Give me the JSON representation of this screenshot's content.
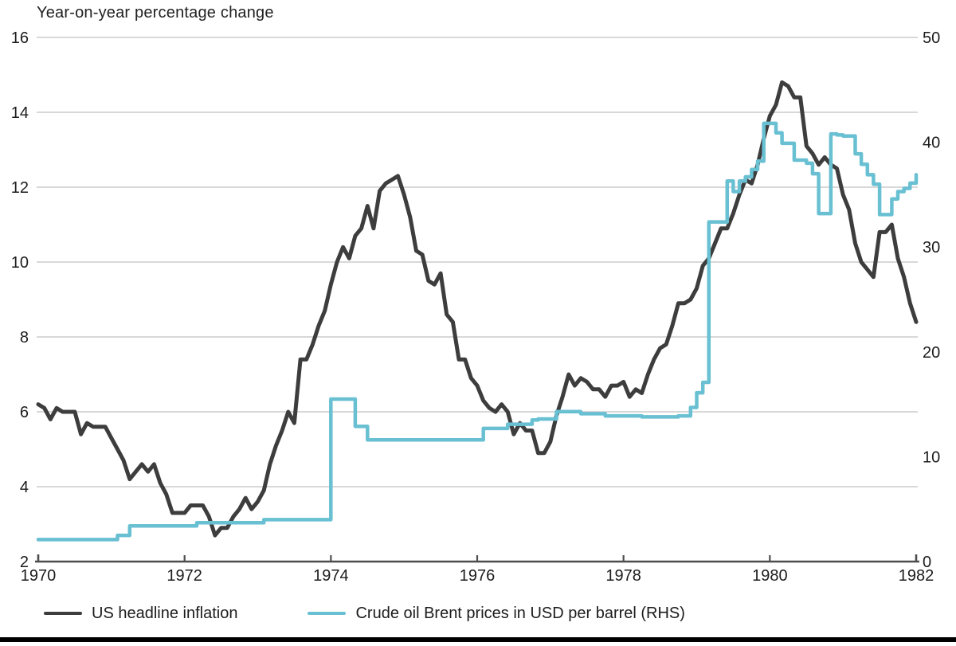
{
  "title": "Year-on-year percentage change",
  "legend": {
    "items": [
      {
        "label": "US headline inflation",
        "color": "#3d3d3d"
      },
      {
        "label": "Crude oil Brent prices in USD per barrel (RHS)",
        "color": "#68c0d2"
      }
    ]
  },
  "colors": {
    "inflation_line": "#3d3d3d",
    "oil_line": "#68c0d2",
    "gridline": "#cccccc",
    "axis": "#4d4d4d",
    "text": "#1c1c1c",
    "background": "#ffffff",
    "bottom_rule": "#000000"
  },
  "chart_data": {
    "type": "line",
    "title": "Year-on-year percentage change",
    "x_start_year": 1970,
    "x_step_months": 1,
    "x_axis": {
      "range": [
        1970,
        1982
      ],
      "ticks": [
        1970,
        1972,
        1974,
        1976,
        1978,
        1980,
        1982
      ],
      "tick_labels": [
        "1970",
        "1972",
        "1974",
        "1976",
        "1978",
        "1980",
        "1982"
      ]
    },
    "left_axis": {
      "range": [
        2,
        16
      ],
      "ticks": [
        2,
        4,
        6,
        8,
        10,
        12,
        14,
        16
      ],
      "tick_labels": [
        "2",
        "4",
        "6",
        "8",
        "10",
        "12",
        "14",
        "16"
      ]
    },
    "right_axis": {
      "range": [
        0,
        50
      ],
      "ticks": [
        0,
        10,
        20,
        30,
        40,
        50
      ],
      "tick_labels": [
        "0",
        "10",
        "20",
        "30",
        "40",
        "50"
      ]
    },
    "grid": true,
    "legend_position": "bottom",
    "series": [
      {
        "name": "US headline inflation",
        "axis": "left",
        "style": "linear",
        "color": "#3d3d3d",
        "stroke_width": 5,
        "values": [
          6.2,
          6.1,
          5.8,
          6.1,
          6.0,
          6.0,
          6.0,
          5.4,
          5.7,
          5.6,
          5.6,
          5.6,
          5.3,
          5.0,
          4.7,
          4.2,
          4.4,
          4.6,
          4.4,
          4.6,
          4.1,
          3.8,
          3.3,
          3.3,
          3.3,
          3.5,
          3.5,
          3.5,
          3.2,
          2.7,
          2.9,
          2.9,
          3.2,
          3.4,
          3.7,
          3.4,
          3.6,
          3.9,
          4.6,
          5.1,
          5.5,
          6.0,
          5.7,
          7.4,
          7.4,
          7.8,
          8.3,
          8.7,
          9.4,
          10.0,
          10.4,
          10.1,
          10.7,
          10.9,
          11.5,
          10.9,
          11.9,
          12.1,
          12.2,
          12.3,
          11.8,
          11.2,
          10.3,
          10.2,
          9.5,
          9.4,
          9.7,
          8.6,
          8.4,
          7.4,
          7.4,
          6.9,
          6.7,
          6.3,
          6.1,
          6.0,
          6.2,
          6.0,
          5.4,
          5.7,
          5.5,
          5.5,
          4.9,
          4.9,
          5.2,
          5.9,
          6.4,
          7.0,
          6.7,
          6.9,
          6.8,
          6.6,
          6.6,
          6.4,
          6.7,
          6.7,
          6.8,
          6.4,
          6.6,
          6.5,
          7.0,
          7.4,
          7.7,
          7.8,
          8.3,
          8.9,
          8.9,
          9.0,
          9.3,
          9.9,
          10.1,
          10.5,
          10.9,
          10.9,
          11.3,
          11.8,
          12.2,
          12.1,
          12.6,
          13.3,
          13.9,
          14.2,
          14.8,
          14.7,
          14.4,
          14.4,
          13.1,
          12.9,
          12.6,
          12.8,
          12.6,
          12.5,
          11.8,
          11.4,
          10.5,
          10.0,
          9.8,
          9.6,
          10.8,
          10.8,
          11.0,
          10.1,
          9.6,
          8.9,
          8.4
        ]
      },
      {
        "name": "Crude oil Brent prices in USD per barrel (RHS)",
        "axis": "right",
        "style": "step-after",
        "color": "#68c0d2",
        "stroke_width": 4.5,
        "values": [
          2.1,
          2.1,
          2.1,
          2.1,
          2.1,
          2.1,
          2.1,
          2.1,
          2.1,
          2.1,
          2.1,
          2.1,
          2.1,
          2.5,
          2.5,
          3.4,
          3.4,
          3.4,
          3.4,
          3.4,
          3.4,
          3.4,
          3.4,
          3.4,
          3.4,
          3.4,
          3.7,
          3.7,
          3.7,
          3.7,
          3.7,
          3.7,
          3.7,
          3.7,
          3.7,
          3.7,
          3.7,
          4.0,
          4.0,
          4.0,
          4.0,
          4.0,
          4.0,
          4.0,
          4.0,
          4.0,
          4.0,
          4.0,
          15.5,
          15.5,
          15.5,
          15.5,
          12.9,
          12.9,
          11.6,
          11.6,
          11.6,
          11.6,
          11.6,
          11.6,
          11.6,
          11.6,
          11.6,
          11.6,
          11.6,
          11.6,
          11.6,
          11.6,
          11.6,
          11.6,
          11.6,
          11.6,
          11.6,
          12.7,
          12.7,
          12.7,
          12.7,
          13.1,
          13.1,
          13.1,
          13.1,
          13.5,
          13.6,
          13.6,
          13.6,
          14.3,
          14.3,
          14.3,
          14.3,
          14.1,
          14.1,
          14.1,
          14.1,
          13.9,
          13.9,
          13.9,
          13.9,
          13.9,
          13.9,
          13.8,
          13.8,
          13.8,
          13.8,
          13.8,
          13.8,
          13.9,
          13.9,
          14.7,
          16.1,
          17.1,
          32.4,
          32.4,
          32.4,
          36.3,
          35.3,
          36.3,
          36.7,
          37.4,
          38.2,
          41.8,
          41.8,
          40.9,
          39.9,
          39.9,
          38.3,
          38.3,
          38.0,
          37.0,
          33.2,
          33.2,
          40.8,
          40.7,
          40.6,
          40.6,
          38.9,
          37.9,
          36.9,
          36.0,
          33.1,
          33.1,
          34.6,
          35.3,
          35.6,
          36.1,
          36.9
        ]
      }
    ]
  }
}
